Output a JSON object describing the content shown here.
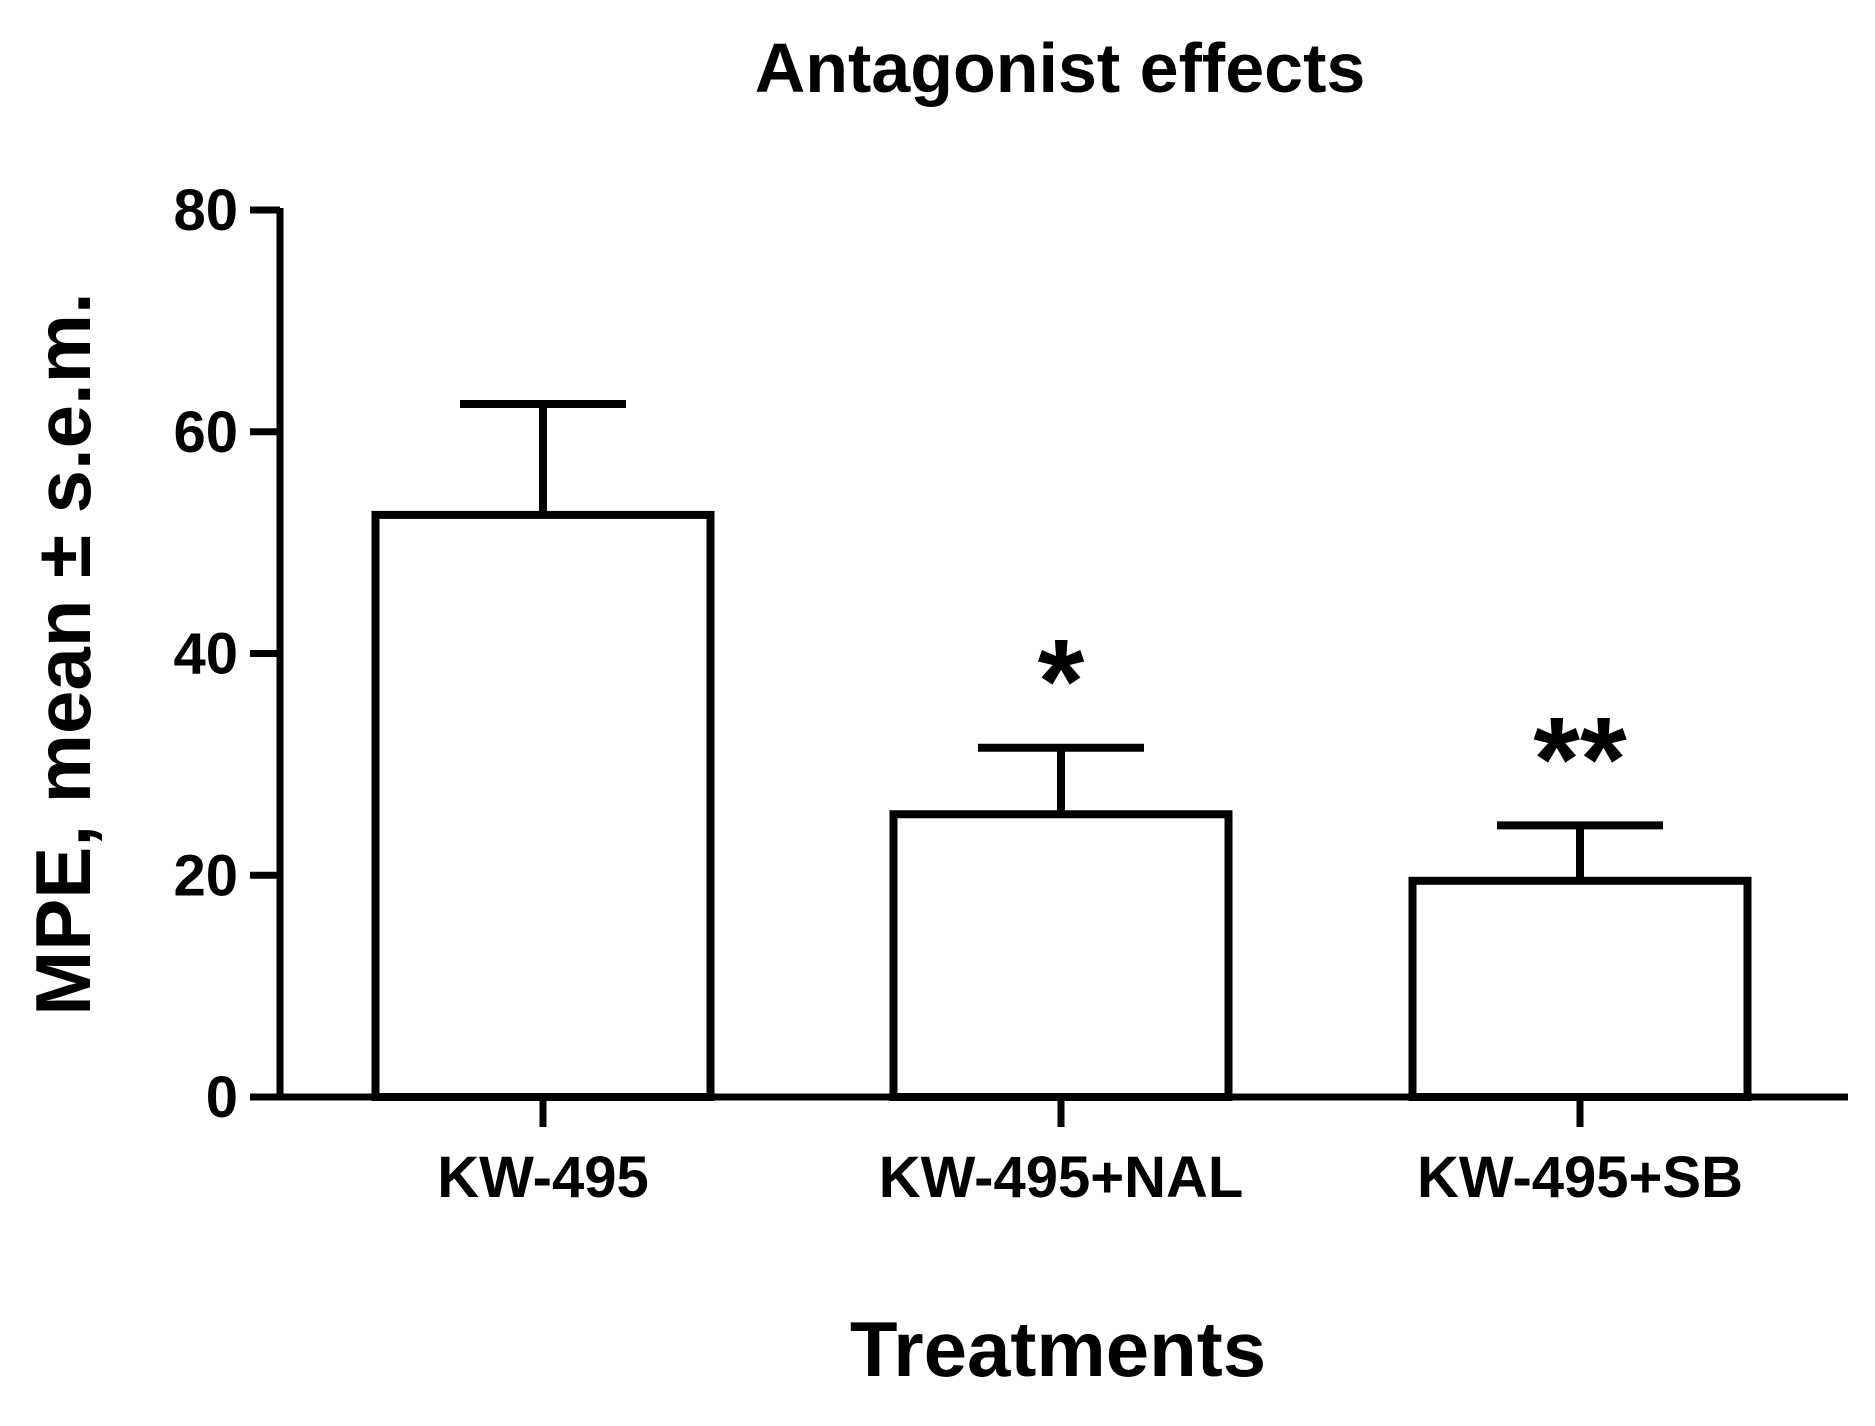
{
  "chart_data": {
    "type": "bar",
    "title": "Antagonist effects",
    "xlabel": "Treatments",
    "ylabel": "MPE, mean ± s.e.m.",
    "ylim": [
      0,
      80
    ],
    "yticks": [
      0,
      20,
      40,
      60,
      80
    ],
    "ytick_labels": [
      "0",
      "20",
      "40",
      "60",
      "80"
    ],
    "categories": [
      "KW-495",
      "KW-495+NAL",
      "KW-495+SB"
    ],
    "values": [
      52.5,
      25.5,
      19.5
    ],
    "errors": [
      10,
      6,
      5
    ],
    "significance": [
      "",
      "*",
      "**"
    ],
    "bar_fill": "#ffffff",
    "stroke_color": "#000000",
    "grid": false
  }
}
